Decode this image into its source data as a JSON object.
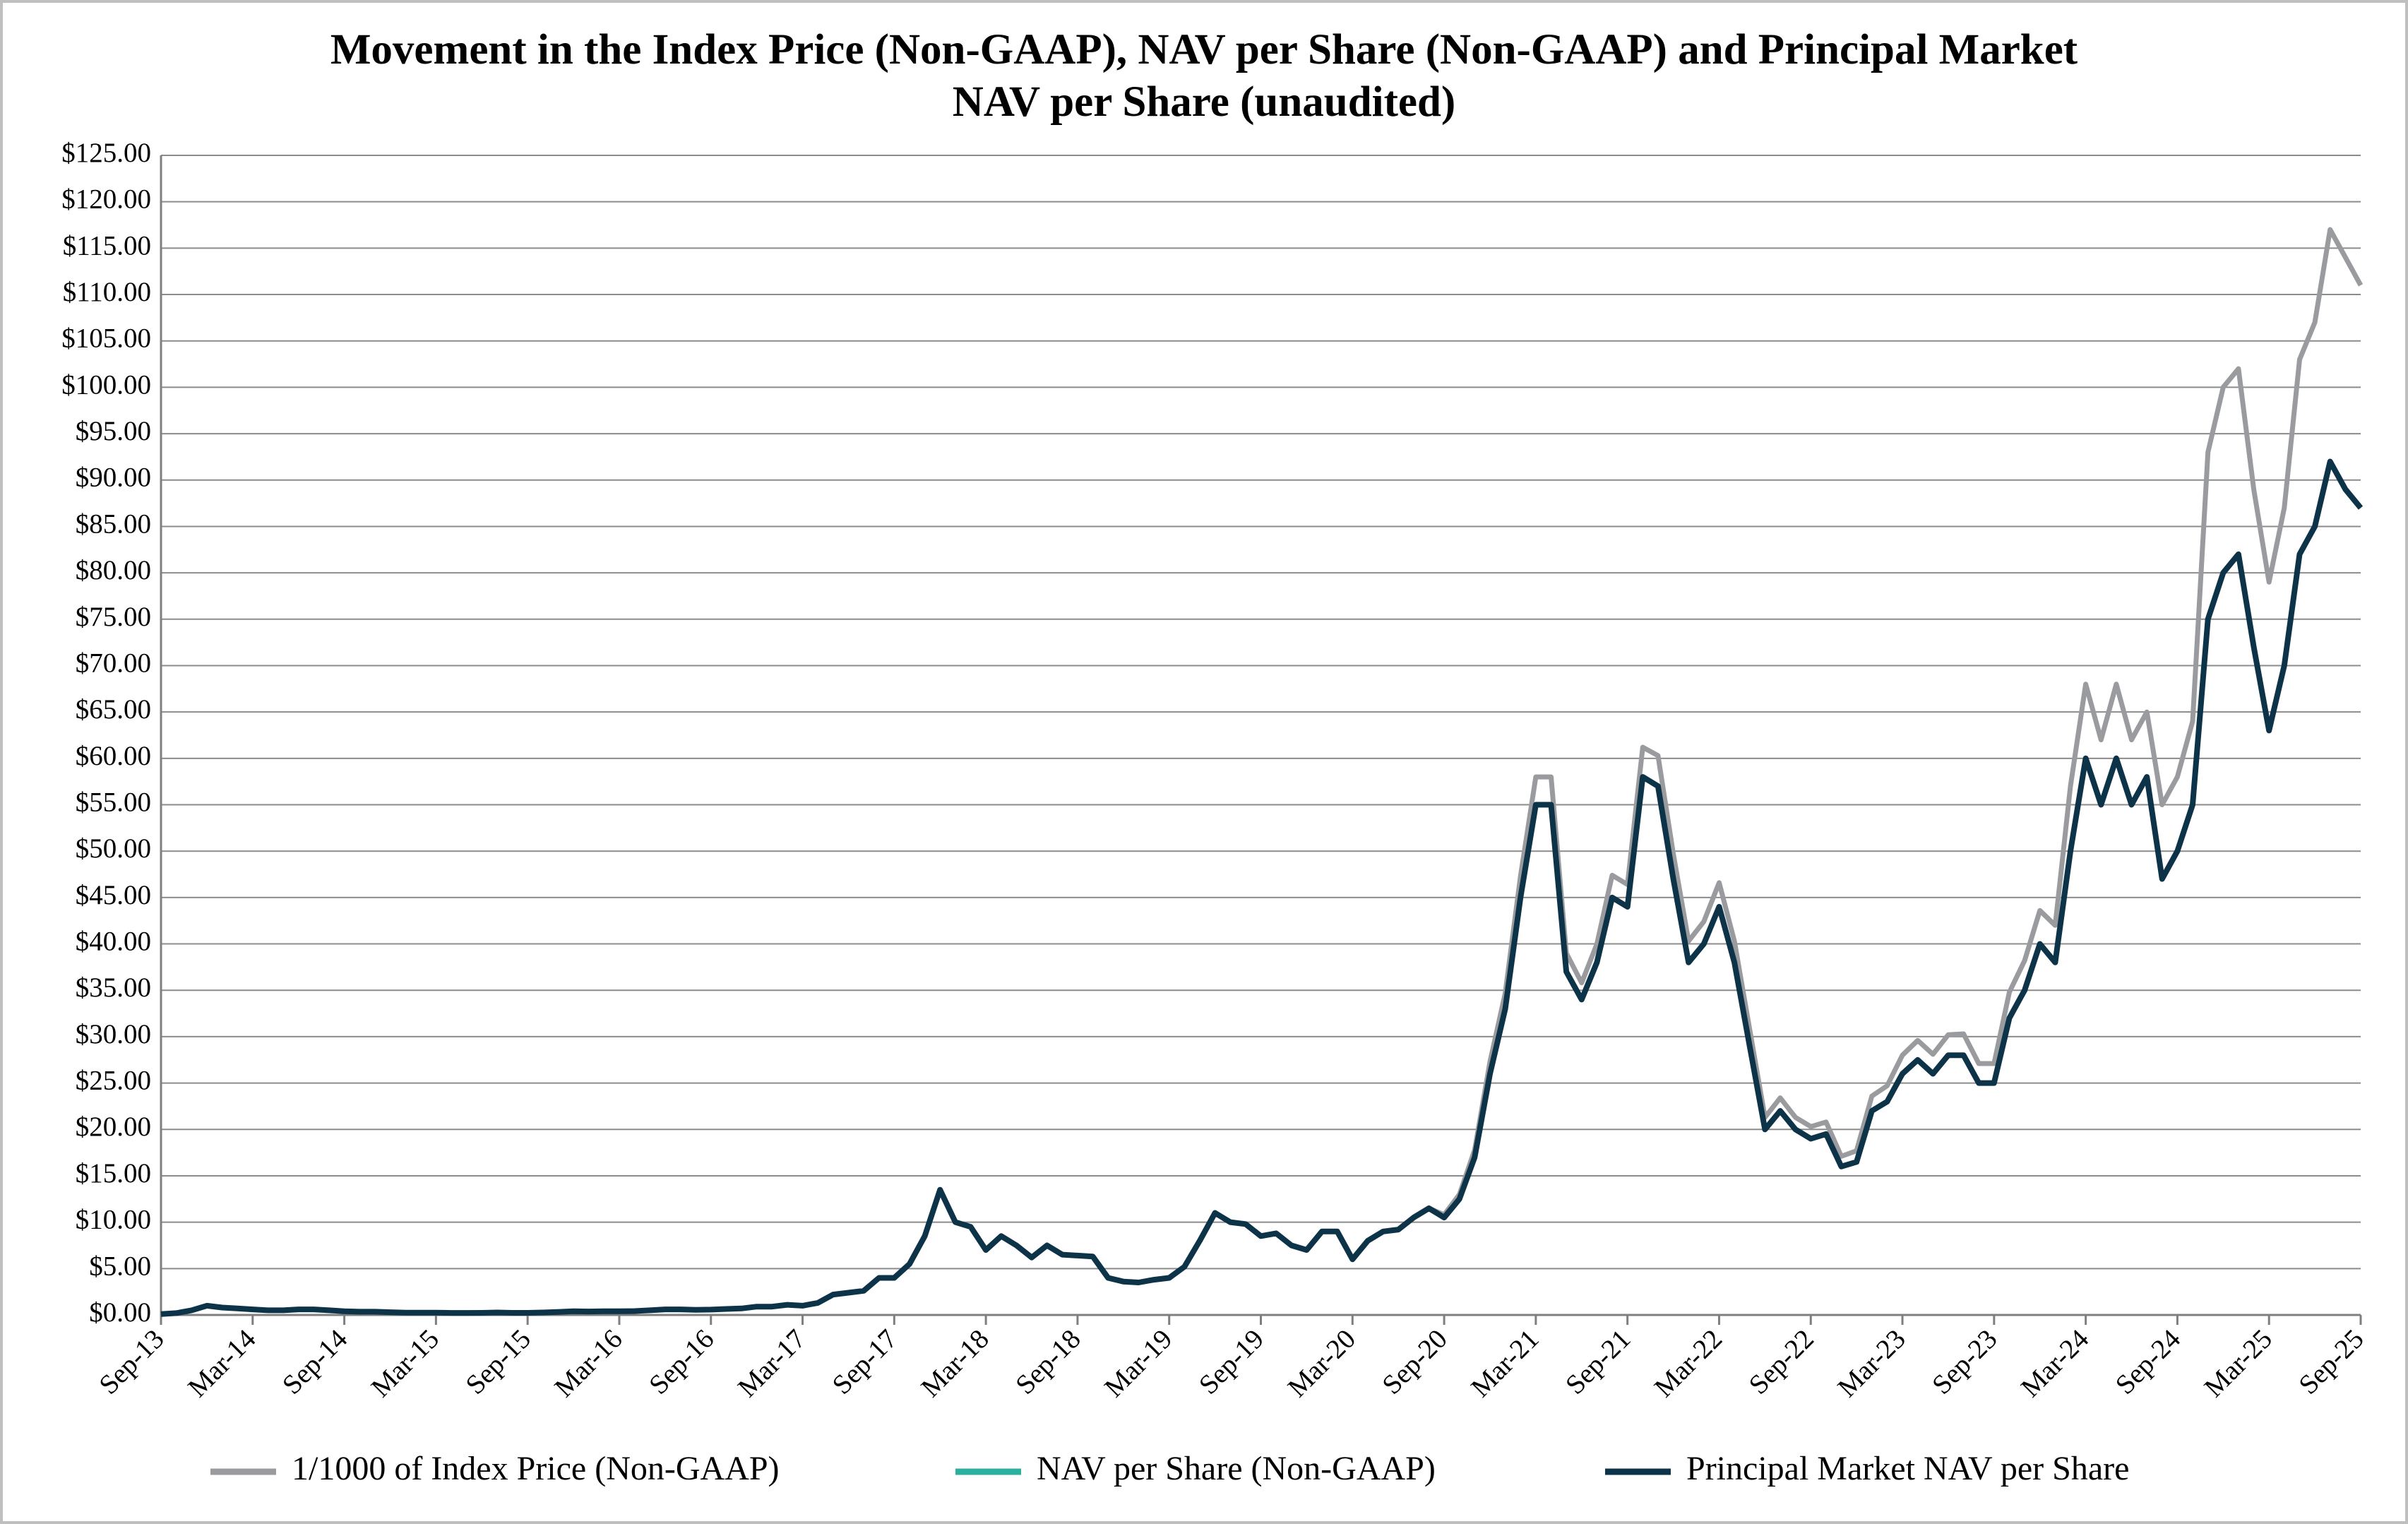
{
  "chart_data": {
    "type": "line",
    "title": [
      "Movement in the Index Price (Non-GAAP), NAV per Share (Non-GAAP) and Principal Market",
      "NAV per Share (unaudited)"
    ],
    "categories": [
      "Sep-13",
      null,
      null,
      null,
      null,
      null,
      "Mar-14",
      null,
      null,
      null,
      null,
      null,
      "Sep-14",
      null,
      null,
      null,
      null,
      null,
      "Mar-15",
      null,
      null,
      null,
      null,
      null,
      "Sep-15",
      null,
      null,
      null,
      null,
      null,
      "Mar-16",
      null,
      null,
      null,
      null,
      null,
      "Sep-16",
      null,
      null,
      null,
      null,
      null,
      "Mar-17",
      null,
      null,
      null,
      null,
      null,
      "Sep-17",
      null,
      null,
      null,
      null,
      null,
      "Mar-18",
      null,
      null,
      null,
      null,
      null,
      "Sep-18",
      null,
      null,
      null,
      null,
      null,
      "Mar-19",
      null,
      null,
      null,
      null,
      null,
      "Sep-19",
      null,
      null,
      null,
      null,
      null,
      "Mar-20",
      null,
      null,
      null,
      null,
      null,
      "Sep-20",
      null,
      null,
      null,
      null,
      null,
      "Mar-21",
      null,
      null,
      null,
      null,
      null,
      "Sep-21",
      null,
      null,
      null,
      null,
      null,
      "Mar-22",
      null,
      null,
      null,
      null,
      null,
      "Sep-22",
      null,
      null,
      null,
      null,
      null,
      "Mar-23",
      null,
      null,
      null,
      null,
      null,
      "Sep-23",
      null,
      null,
      null,
      null,
      null,
      "Mar-24",
      null,
      null,
      null,
      null,
      null,
      "Sep-24",
      null,
      null,
      null,
      null,
      null,
      "Mar-25",
      null,
      null,
      null,
      null,
      null,
      "Sep-25"
    ],
    "series": [
      {
        "name": "1/1000 of Index Price (Non-GAAP)",
        "color": "#9a9b9e",
        "values": [
          0.1,
          0.2,
          0.5,
          1.0,
          0.8,
          0.7,
          0.6,
          0.5,
          0.5,
          0.6,
          0.6,
          0.5,
          0.4,
          0.35,
          0.35,
          0.3,
          0.25,
          0.25,
          0.25,
          0.22,
          0.22,
          0.23,
          0.27,
          0.23,
          0.23,
          0.27,
          0.33,
          0.4,
          0.37,
          0.4,
          0.4,
          0.42,
          0.5,
          0.6,
          0.6,
          0.55,
          0.58,
          0.65,
          0.7,
          0.9,
          0.9,
          1.1,
          1.0,
          1.3,
          2.2,
          2.4,
          2.6,
          4.0,
          4.0,
          5.5,
          8.5,
          13.5,
          10.0,
          9.5,
          7.0,
          8.5,
          7.5,
          6.2,
          7.5,
          6.5,
          6.4,
          6.3,
          4.0,
          3.6,
          3.5,
          3.8,
          4.0,
          5.2,
          8.0,
          11.0,
          10.0,
          9.8,
          8.5,
          8.8,
          7.5,
          7.0,
          9.0,
          9.0,
          6.0,
          8.0,
          9.0,
          9.2,
          10.5,
          11.5,
          10.8,
          13.0,
          17.8,
          27.3,
          34.7,
          47.3,
          58,
          58,
          39,
          35.8,
          40,
          47.4,
          46.4,
          61.2,
          60.3,
          49.7,
          40.3,
          42.4,
          46.6,
          40.3,
          30.8,
          21.3,
          23.4,
          21.3,
          20.3,
          20.8,
          17.1,
          17.7,
          23.6,
          24.7,
          28,
          29.6,
          28.1,
          30.2,
          30.3,
          27.1,
          27.1,
          34.8,
          38.2,
          43.6,
          42,
          57,
          68,
          62,
          68,
          62,
          65,
          55,
          58,
          64,
          93,
          100,
          102,
          89,
          79,
          87,
          103,
          107,
          117,
          114,
          111
        ]
      },
      {
        "name": "NAV per Share (Non-GAAP)",
        "color": "#2bb0a0",
        "values": [
          0.1,
          0.2,
          0.5,
          1.0,
          0.8,
          0.7,
          0.6,
          0.5,
          0.5,
          0.6,
          0.6,
          0.5,
          0.4,
          0.35,
          0.35,
          0.3,
          0.25,
          0.25,
          0.25,
          0.22,
          0.22,
          0.23,
          0.27,
          0.23,
          0.23,
          0.27,
          0.33,
          0.4,
          0.37,
          0.4,
          0.4,
          0.42,
          0.5,
          0.6,
          0.6,
          0.55,
          0.58,
          0.65,
          0.7,
          0.9,
          0.9,
          1.1,
          1.0,
          1.3,
          2.2,
          2.4,
          2.6,
          4.0,
          4.0,
          5.5,
          8.5,
          13.5,
          10.0,
          9.5,
          7.0,
          8.5,
          7.5,
          6.2,
          7.5,
          6.5,
          6.4,
          6.3,
          4.0,
          3.6,
          3.5,
          3.8,
          4.0,
          5.2,
          8.0,
          11.0,
          10.0,
          9.8,
          8.5,
          8.8,
          7.5,
          7.0,
          9.0,
          9.0,
          6.0,
          8.0,
          9.0,
          9.2,
          10.5,
          11.5,
          10.5,
          12.5,
          17.0,
          26.0,
          33,
          45,
          55,
          55,
          37,
          34,
          38,
          45,
          44,
          58,
          57,
          47,
          38,
          40,
          44,
          38,
          29,
          20,
          22,
          20,
          19,
          19.5,
          16,
          16.5,
          22,
          23,
          26,
          27.5,
          26,
          28,
          28,
          25,
          25,
          32,
          35,
          40,
          38,
          50,
          60,
          55,
          60,
          55,
          58,
          47,
          50,
          55,
          75,
          80,
          82,
          72,
          63,
          70,
          82,
          85,
          92,
          89,
          87
        ]
      },
      {
        "name": "Principal Market NAV per Share",
        "color": "#0d3349",
        "values": [
          0.1,
          0.2,
          0.5,
          1.0,
          0.8,
          0.7,
          0.6,
          0.5,
          0.5,
          0.6,
          0.6,
          0.5,
          0.4,
          0.35,
          0.35,
          0.3,
          0.25,
          0.25,
          0.25,
          0.22,
          0.22,
          0.23,
          0.27,
          0.23,
          0.23,
          0.27,
          0.33,
          0.4,
          0.37,
          0.4,
          0.4,
          0.42,
          0.5,
          0.6,
          0.6,
          0.55,
          0.58,
          0.65,
          0.7,
          0.9,
          0.9,
          1.1,
          1.0,
          1.3,
          2.2,
          2.4,
          2.6,
          4.0,
          4.0,
          5.5,
          8.5,
          13.5,
          10.0,
          9.5,
          7.0,
          8.5,
          7.5,
          6.2,
          7.5,
          6.5,
          6.4,
          6.3,
          4.0,
          3.6,
          3.5,
          3.8,
          4.0,
          5.2,
          8.0,
          11.0,
          10.0,
          9.8,
          8.5,
          8.8,
          7.5,
          7.0,
          9.0,
          9.0,
          6.0,
          8.0,
          9.0,
          9.2,
          10.5,
          11.5,
          10.5,
          12.5,
          17.0,
          26.0,
          33,
          45,
          55,
          55,
          37,
          34,
          38,
          45,
          44,
          58,
          57,
          47,
          38,
          40,
          44,
          38,
          29,
          20,
          22,
          20,
          19,
          19.5,
          16,
          16.5,
          22,
          23,
          26,
          27.5,
          26,
          28,
          28,
          25,
          25,
          32,
          35,
          40,
          38,
          50,
          60,
          55,
          60,
          55,
          58,
          47,
          50,
          55,
          75,
          80,
          82,
          72,
          63,
          70,
          82,
          85,
          92,
          89,
          87
        ]
      }
    ],
    "ylim": [
      0,
      125
    ],
    "yticks": [
      {
        "value": 0,
        "label": "$0.00"
      },
      {
        "value": 5,
        "label": "$5.00"
      },
      {
        "value": 10,
        "label": "$10.00"
      },
      {
        "value": 15,
        "label": "$15.00"
      },
      {
        "value": 20,
        "label": "$20.00"
      },
      {
        "value": 25,
        "label": "$25.00"
      },
      {
        "value": 30,
        "label": "$30.00"
      },
      {
        "value": 35,
        "label": "$35.00"
      },
      {
        "value": 40,
        "label": "$40.00"
      },
      {
        "value": 45,
        "label": "$45.00"
      },
      {
        "value": 50,
        "label": "$50.00"
      },
      {
        "value": 55,
        "label": "$55.00"
      },
      {
        "value": 60,
        "label": "$60.00"
      },
      {
        "value": 65,
        "label": "$65.00"
      },
      {
        "value": 70,
        "label": "$70.00"
      },
      {
        "value": 75,
        "label": "$75.00"
      },
      {
        "value": 80,
        "label": "$80.00"
      },
      {
        "value": 85,
        "label": "$85.00"
      },
      {
        "value": 90,
        "label": "$90.00"
      },
      {
        "value": 95,
        "label": "$95.00"
      },
      {
        "value": 100,
        "label": "$100.00"
      },
      {
        "value": 105,
        "label": "$105.00"
      },
      {
        "value": 110,
        "label": "$110.00"
      },
      {
        "value": 115,
        "label": "$115.00"
      },
      {
        "value": 120,
        "label": "$120.00"
      },
      {
        "value": 125,
        "label": "$125.00"
      }
    ],
    "grid": true,
    "legend": "bottom"
  }
}
